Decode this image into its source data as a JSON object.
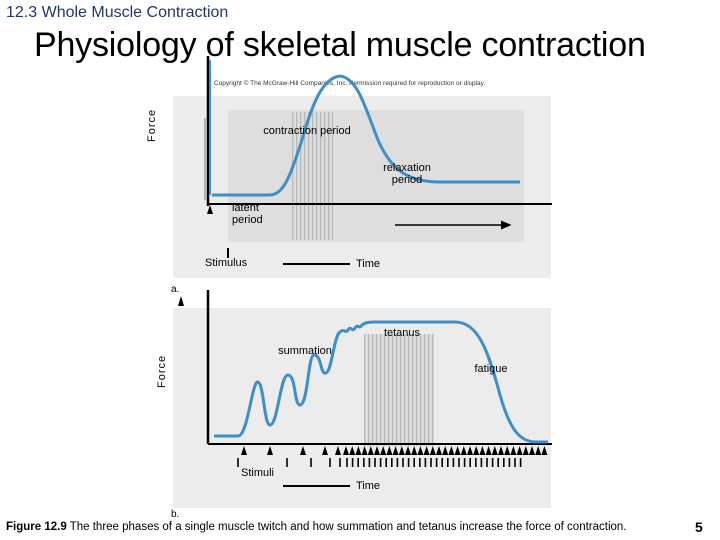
{
  "header": {
    "section": "12.3 Whole Muscle Contraction",
    "title": "Physiology of skeletal muscle contraction",
    "copyright": "Copyright © The McGraw-Hill Companies, Inc. Permission required for reproduction or display."
  },
  "panel_a": {
    "y_axis_label": "Force",
    "labels": {
      "contraction": "contraction period",
      "relaxation": "relaxation period",
      "latent": "latent period",
      "stimulus": "Stimulus",
      "time": "Time"
    },
    "panel_letter": "a."
  },
  "panel_b": {
    "y_axis_label": "Force",
    "labels": {
      "tetanus": "tetanus",
      "summation": "summation",
      "fatigue": "fatigue",
      "stimuli": "Stimuli",
      "time": "Time"
    },
    "panel_letter": "b."
  },
  "caption": {
    "figure_ref": "Figure 12.9",
    "text": "The three phases of a single muscle twitch and how summation and tetanus increase the force of contraction."
  },
  "page_number": "5",
  "colors": {
    "curve": "#3d8ec9",
    "panel_bg": "#ececec",
    "shade": "#c8c8c8",
    "title_blue": "#1f3864"
  }
}
